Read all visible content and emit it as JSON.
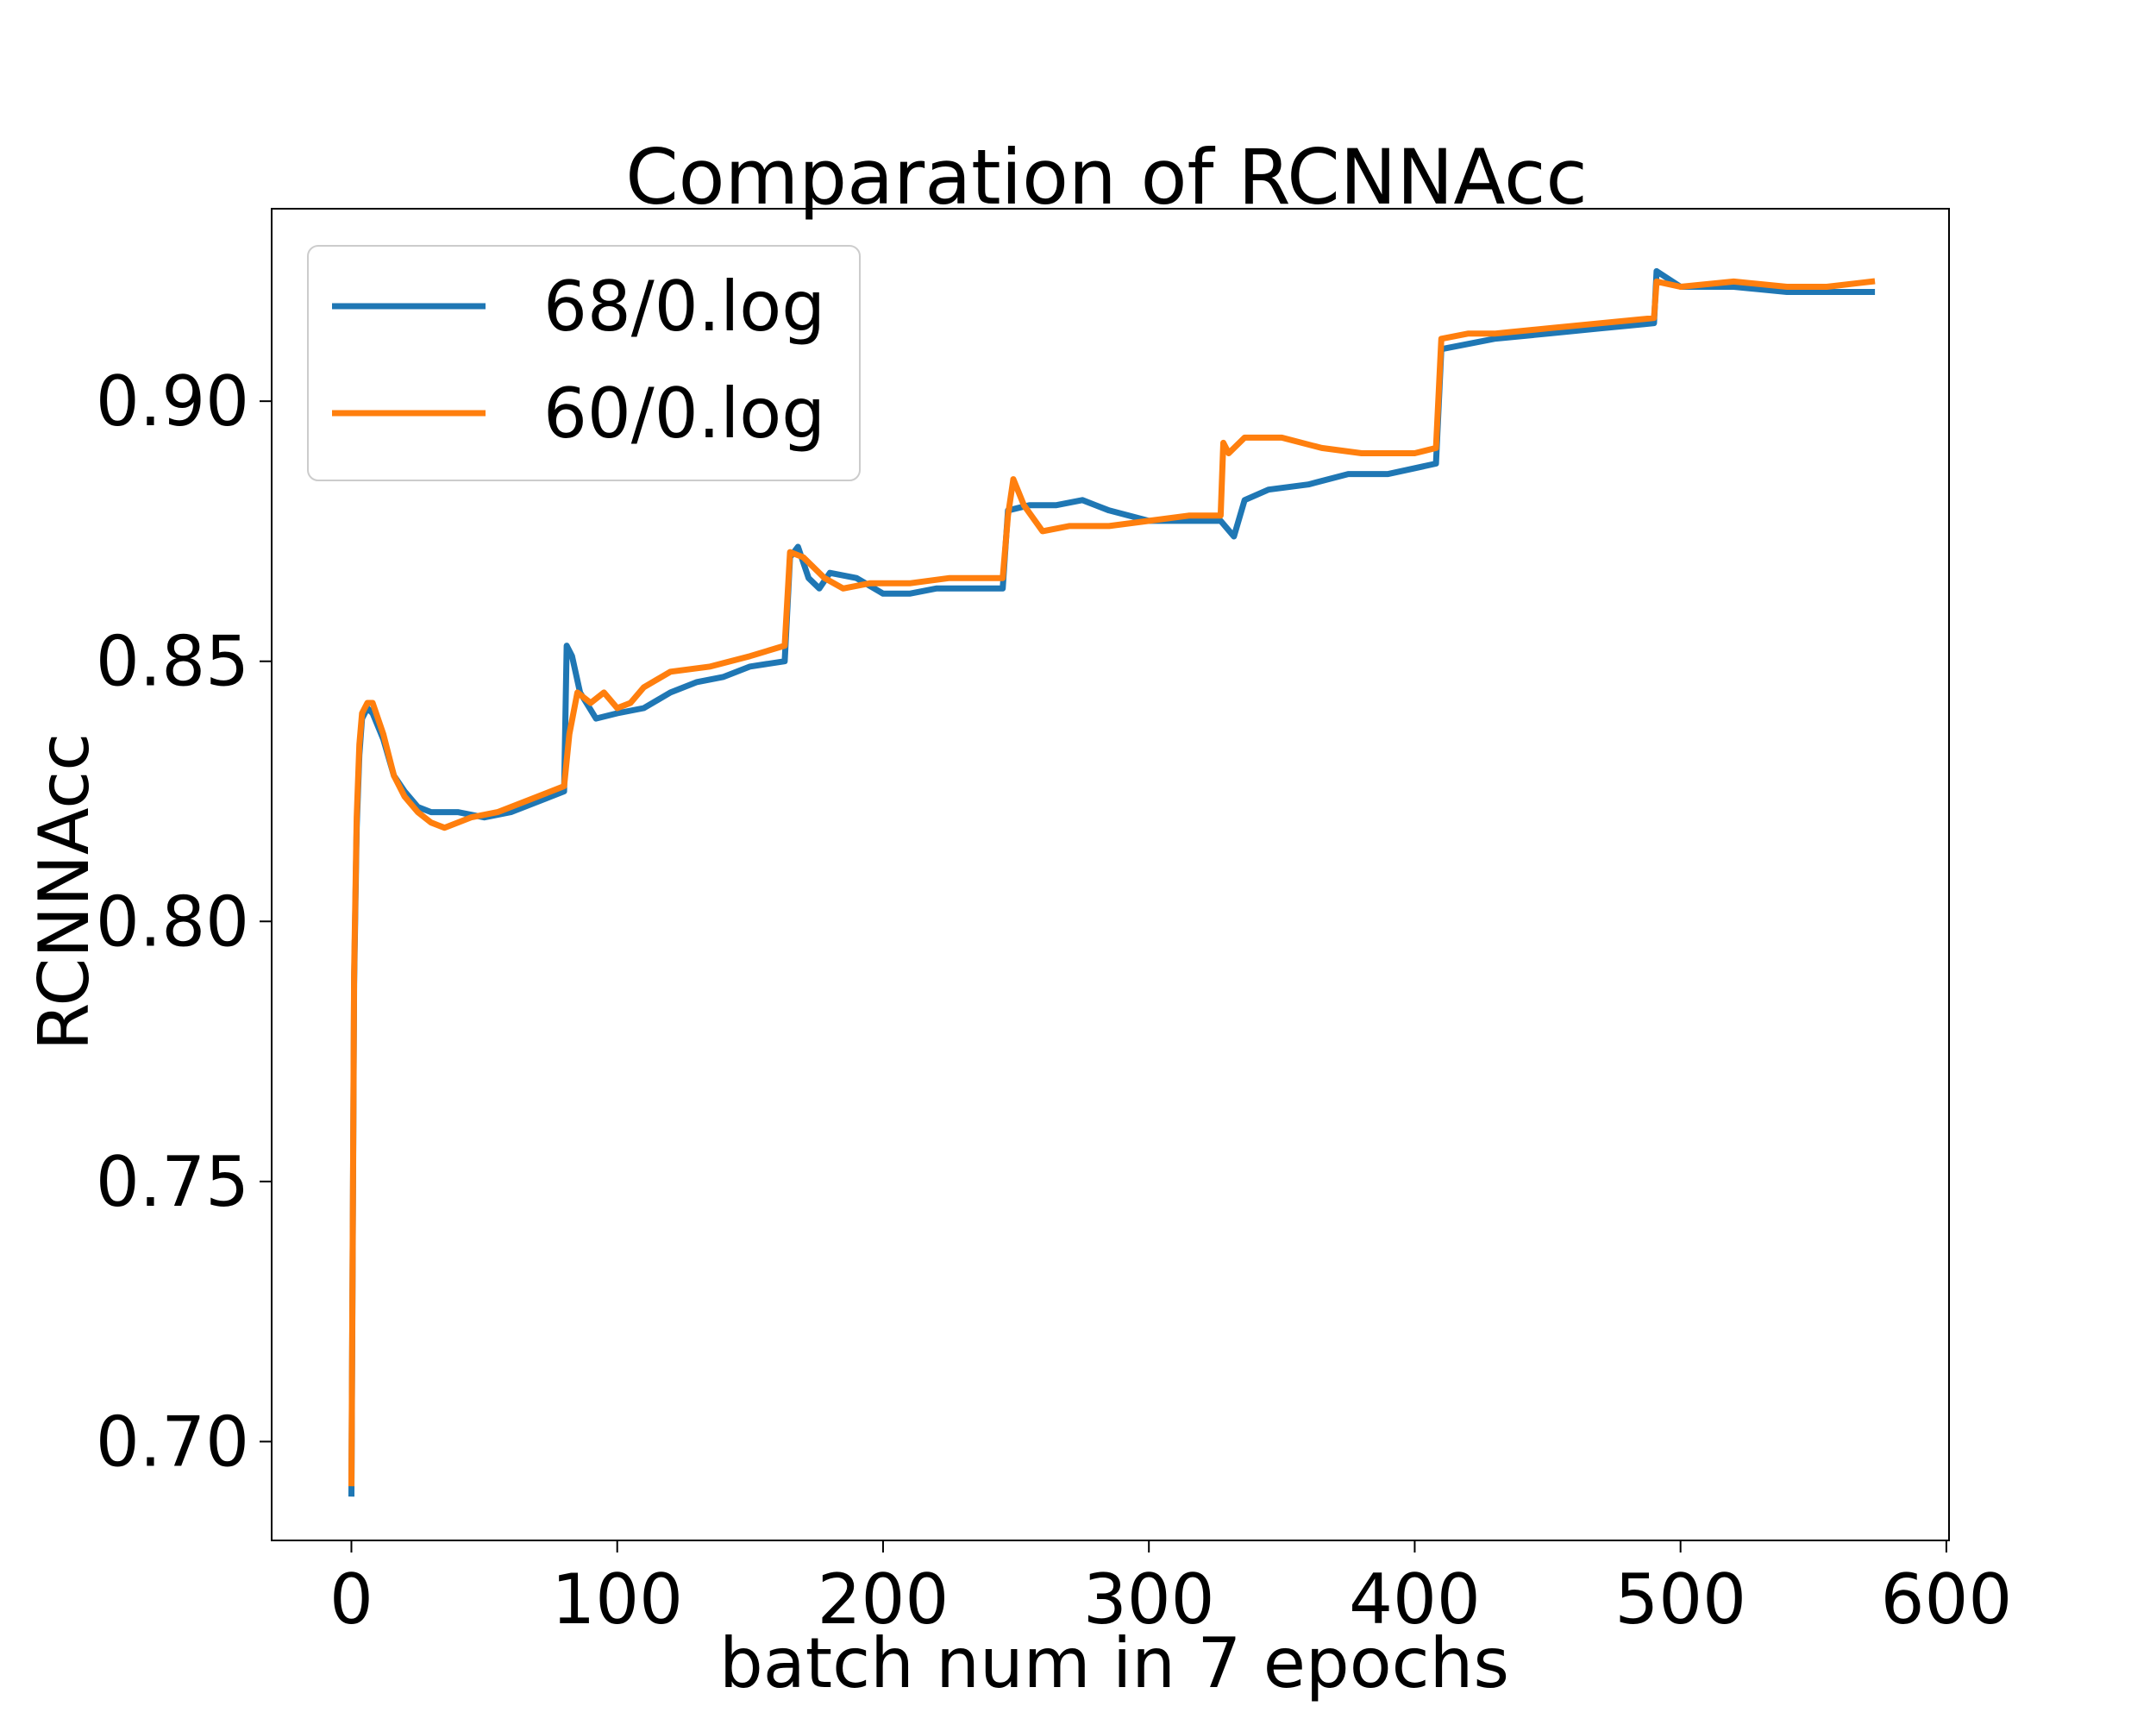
{
  "chart_data": {
    "type": "line",
    "title": "Comparation of RCNNAcc",
    "xlabel": "batch num in 7 epochs",
    "ylabel": "RCNNAcc",
    "xlim": [
      -30,
      601
    ],
    "ylim": [
      0.681,
      0.937
    ],
    "xticks": [
      0,
      100,
      200,
      300,
      400,
      500,
      600
    ],
    "xtick_labels": [
      "0",
      "100",
      "200",
      "300",
      "400",
      "500",
      "600"
    ],
    "yticks": [
      0.7,
      0.75,
      0.8,
      0.85,
      0.9
    ],
    "ytick_labels": [
      "0.70",
      "0.75",
      "0.80",
      "0.85",
      "0.90"
    ],
    "grid": false,
    "legend_position": "top-left",
    "series": [
      {
        "name": "68/0.log",
        "color": "#1f77b4",
        "points": [
          [
            0,
            0.69
          ],
          [
            1,
            0.788
          ],
          [
            2,
            0.818
          ],
          [
            3,
            0.832
          ],
          [
            4,
            0.839
          ],
          [
            6,
            0.841
          ],
          [
            8,
            0.84
          ],
          [
            12,
            0.835
          ],
          [
            16,
            0.828
          ],
          [
            20,
            0.825
          ],
          [
            25,
            0.822
          ],
          [
            30,
            0.821
          ],
          [
            40,
            0.821
          ],
          [
            50,
            0.82
          ],
          [
            60,
            0.821
          ],
          [
            70,
            0.823
          ],
          [
            80,
            0.825
          ],
          [
            81,
            0.853
          ],
          [
            83,
            0.851
          ],
          [
            86,
            0.844
          ],
          [
            92,
            0.839
          ],
          [
            100,
            0.84
          ],
          [
            110,
            0.841
          ],
          [
            120,
            0.844
          ],
          [
            130,
            0.846
          ],
          [
            140,
            0.847
          ],
          [
            150,
            0.849
          ],
          [
            163,
            0.85
          ],
          [
            165,
            0.87
          ],
          [
            168,
            0.872
          ],
          [
            172,
            0.866
          ],
          [
            176,
            0.864
          ],
          [
            180,
            0.867
          ],
          [
            190,
            0.866
          ],
          [
            200,
            0.863
          ],
          [
            210,
            0.863
          ],
          [
            220,
            0.864
          ],
          [
            230,
            0.864
          ],
          [
            245,
            0.864
          ],
          [
            247,
            0.879
          ],
          [
            255,
            0.88
          ],
          [
            265,
            0.88
          ],
          [
            275,
            0.881
          ],
          [
            285,
            0.879
          ],
          [
            300,
            0.877
          ],
          [
            315,
            0.877
          ],
          [
            327,
            0.877
          ],
          [
            332,
            0.874
          ],
          [
            336,
            0.881
          ],
          [
            345,
            0.883
          ],
          [
            360,
            0.884
          ],
          [
            375,
            0.886
          ],
          [
            390,
            0.886
          ],
          [
            408,
            0.888
          ],
          [
            410,
            0.91
          ],
          [
            420,
            0.911
          ],
          [
            430,
            0.912
          ],
          [
            450,
            0.913
          ],
          [
            470,
            0.914
          ],
          [
            490,
            0.915
          ],
          [
            491,
            0.925
          ],
          [
            500,
            0.922
          ],
          [
            520,
            0.922
          ],
          [
            540,
            0.921
          ],
          [
            555,
            0.921
          ],
          [
            572,
            0.921
          ]
        ]
      },
      {
        "name": "60/0.log",
        "color": "#ff7f0e",
        "points": [
          [
            0,
            0.692
          ],
          [
            1,
            0.79
          ],
          [
            2,
            0.82
          ],
          [
            3,
            0.834
          ],
          [
            4,
            0.84
          ],
          [
            6,
            0.842
          ],
          [
            8,
            0.842
          ],
          [
            12,
            0.836
          ],
          [
            16,
            0.828
          ],
          [
            20,
            0.824
          ],
          [
            25,
            0.821
          ],
          [
            30,
            0.819
          ],
          [
            35,
            0.818
          ],
          [
            45,
            0.82
          ],
          [
            55,
            0.821
          ],
          [
            65,
            0.823
          ],
          [
            80,
            0.826
          ],
          [
            82,
            0.836
          ],
          [
            85,
            0.844
          ],
          [
            90,
            0.842
          ],
          [
            95,
            0.844
          ],
          [
            100,
            0.841
          ],
          [
            105,
            0.842
          ],
          [
            110,
            0.845
          ],
          [
            120,
            0.848
          ],
          [
            135,
            0.849
          ],
          [
            150,
            0.851
          ],
          [
            163,
            0.853
          ],
          [
            165,
            0.871
          ],
          [
            170,
            0.87
          ],
          [
            178,
            0.866
          ],
          [
            185,
            0.864
          ],
          [
            195,
            0.865
          ],
          [
            210,
            0.865
          ],
          [
            225,
            0.866
          ],
          [
            245,
            0.866
          ],
          [
            247,
            0.878
          ],
          [
            249,
            0.885
          ],
          [
            253,
            0.88
          ],
          [
            260,
            0.875
          ],
          [
            270,
            0.876
          ],
          [
            285,
            0.876
          ],
          [
            300,
            0.877
          ],
          [
            315,
            0.878
          ],
          [
            327,
            0.878
          ],
          [
            328,
            0.892
          ],
          [
            330,
            0.89
          ],
          [
            336,
            0.893
          ],
          [
            350,
            0.893
          ],
          [
            365,
            0.891
          ],
          [
            380,
            0.89
          ],
          [
            400,
            0.89
          ],
          [
            408,
            0.891
          ],
          [
            410,
            0.912
          ],
          [
            420,
            0.913
          ],
          [
            430,
            0.913
          ],
          [
            450,
            0.914
          ],
          [
            470,
            0.915
          ],
          [
            490,
            0.916
          ],
          [
            491,
            0.923
          ],
          [
            500,
            0.922
          ],
          [
            520,
            0.923
          ],
          [
            540,
            0.922
          ],
          [
            555,
            0.922
          ],
          [
            572,
            0.923
          ]
        ]
      }
    ]
  }
}
